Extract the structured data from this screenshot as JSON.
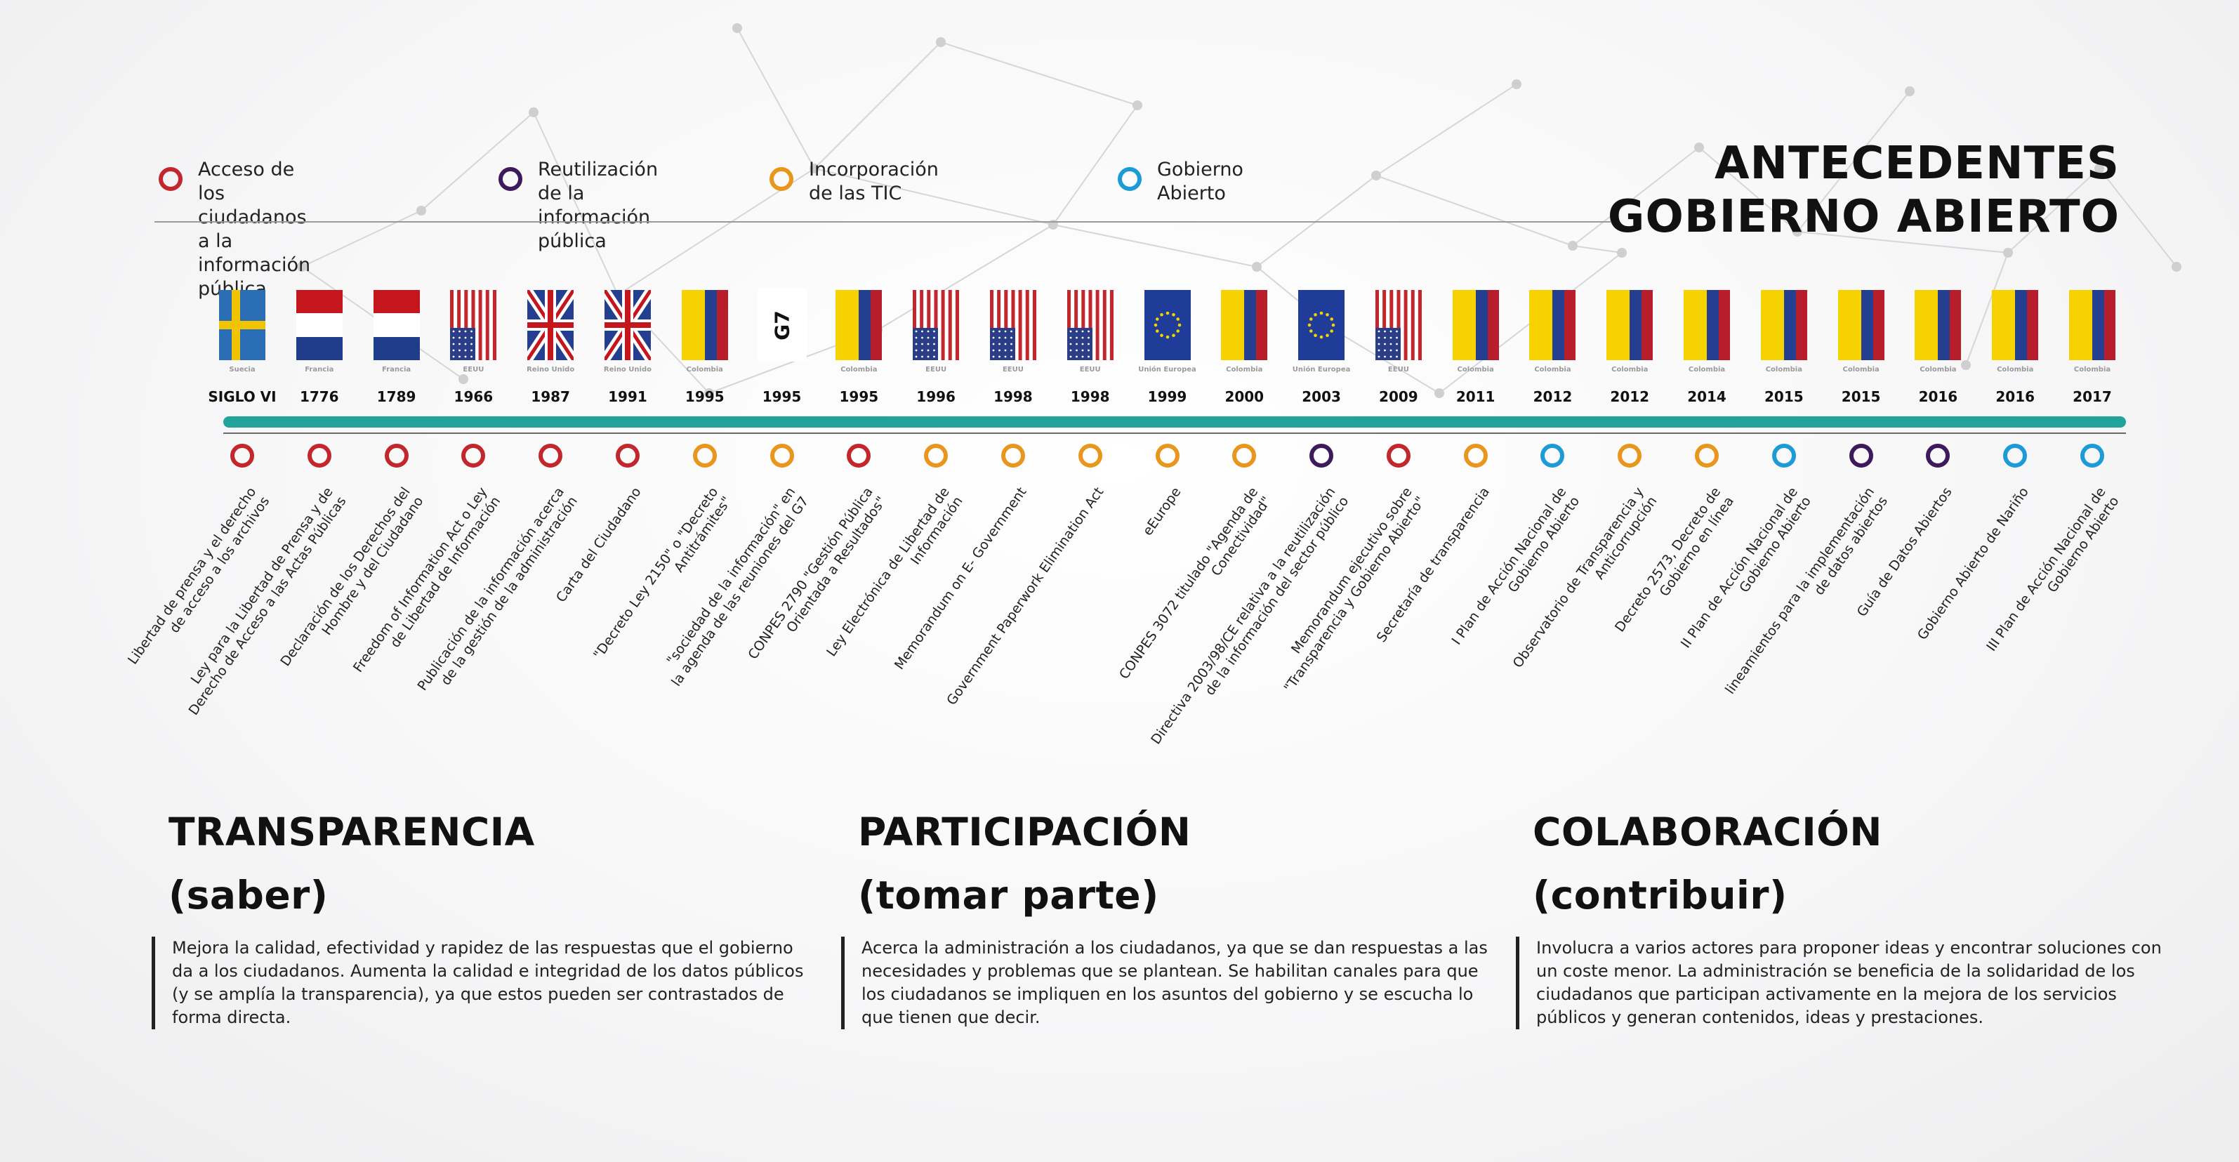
{
  "title_lines": [
    "ANTECEDENTES",
    "GOBIERNO ABIERTO"
  ],
  "colors": {
    "acceso": "#c1272d",
    "reutilizacion": "#3d1a5b",
    "tic": "#e8961e",
    "abierto": "#1c9bd7",
    "bar": "#21a39a"
  },
  "legend": [
    {
      "key": "acceso",
      "label": "Acceso de los ciudadanos\na la información pública"
    },
    {
      "key": "reutilizacion",
      "label": "Reutilización de la\ninformación pública"
    },
    {
      "key": "tic",
      "label": "Incorporación de las TIC"
    },
    {
      "key": "abierto",
      "label": "Gobierno Abierto"
    }
  ],
  "timeline": [
    {
      "flag": "sweden",
      "country": "Suecia",
      "year": "SIGLO VI",
      "category": "acceso",
      "text": "Libertad de prensa y el derecho\nde acceso a los archivos"
    },
    {
      "flag": "france",
      "country": "Francia",
      "year": "1776",
      "category": "acceso",
      "text": "Ley para la Libertad de Prensa y de\nDerecho de Acceso a las Actas Públicas"
    },
    {
      "flag": "france",
      "country": "Francia",
      "year": "1789",
      "category": "acceso",
      "text": "Declaración de los Derechos del\nHombre y del Ciudadano"
    },
    {
      "flag": "usa",
      "country": "EEUU",
      "year": "1966",
      "category": "acceso",
      "text": "Freedom of Information Act o Ley\nde Libertad de Información"
    },
    {
      "flag": "uk",
      "country": "Reino Unido",
      "year": "1987",
      "category": "acceso",
      "text": "Publicación de la información acerca\nde la gestión de la administración"
    },
    {
      "flag": "uk",
      "country": "Reino Unido",
      "year": "1991",
      "category": "acceso",
      "text": "Carta del Ciudadano"
    },
    {
      "flag": "colombia",
      "country": "Colombia",
      "year": "1995",
      "category": "tic",
      "text": "\"Decreto Ley 2150\" o \"Decreto\nAntitrámites\""
    },
    {
      "flag": "g7",
      "country": "",
      "year": "1995",
      "category": "tic",
      "text": "\"sociedad de la información\" en\nla agenda de las reuniones del G7"
    },
    {
      "flag": "colombia",
      "country": "Colombia",
      "year": "1995",
      "category": "acceso",
      "text": "CONPES 2790 \"Gestión Pública\nOrientada a Resultados\""
    },
    {
      "flag": "usa",
      "country": "EEUU",
      "year": "1996",
      "category": "tic",
      "text": "Ley Electrónica de Libertad de\nInformación"
    },
    {
      "flag": "usa",
      "country": "EEUU",
      "year": "1998",
      "category": "tic",
      "text": "Memorandum on E- Government"
    },
    {
      "flag": "usa",
      "country": "EEUU",
      "year": "1998",
      "category": "tic",
      "text": "Government Paperwork Elimination Act"
    },
    {
      "flag": "eu",
      "country": "Unión Europea",
      "year": "1999",
      "category": "tic",
      "text": "eEurope"
    },
    {
      "flag": "colombia",
      "country": "Colombia",
      "year": "2000",
      "category": "tic",
      "text": "CONPES 3072 titulado \"Agenda de\nConectividad\""
    },
    {
      "flag": "eu",
      "country": "Unión Europea",
      "year": "2003",
      "category": "reutilizacion",
      "text": "Directiva 2003/98/CE relativa a la reutilización\nde la información del sector público"
    },
    {
      "flag": "usa",
      "country": "EEUU",
      "year": "2009",
      "category": "acceso",
      "text": "Memorandum ejecutivo sobre\n\"Transparencia y Gobierno Abierto\""
    },
    {
      "flag": "colombia",
      "country": "Colombia",
      "year": "2011",
      "category": "tic",
      "text": "Secretaría de transparencia"
    },
    {
      "flag": "colombia",
      "country": "Colombia",
      "year": "2012",
      "category": "abierto",
      "text": "I Plan de Acción Nacional de\nGobierno Abierto"
    },
    {
      "flag": "colombia",
      "country": "Colombia",
      "year": "2012",
      "category": "tic",
      "text": "Observatorio de Transparencia y\nAnticorrupción"
    },
    {
      "flag": "colombia",
      "country": "Colombia",
      "year": "2014",
      "category": "tic",
      "text": "Decreto 2573, Decreto de\nGobierno en línea"
    },
    {
      "flag": "colombia",
      "country": "Colombia",
      "year": "2015",
      "category": "abierto",
      "text": "II Plan de Acción Nacional de\nGobierno Abierto"
    },
    {
      "flag": "colombia",
      "country": "Colombia",
      "year": "2015",
      "category": "reutilizacion",
      "text": "lineamientos para la implementación\nde datos abiertos"
    },
    {
      "flag": "colombia",
      "country": "Colombia",
      "year": "2016",
      "category": "reutilizacion",
      "text": "Guía de Datos Abiertos"
    },
    {
      "flag": "colombia",
      "country": "Colombia",
      "year": "2016",
      "category": "abierto",
      "text": "Gobierno Abierto de Nariño"
    },
    {
      "flag": "colombia",
      "country": "Colombia",
      "year": "2017",
      "category": "abierto",
      "text": "III Plan de Acción Nacional de\nGobierno Abierto"
    }
  ],
  "g7_label": "G7",
  "pillars": [
    {
      "title": "TRANSPARENCIA",
      "subtitle": "(saber)",
      "text": "Mejora la calidad, efectividad y rapidez de las respuestas que el gobierno da a los ciudadanos. Aumenta la calidad e integridad de los datos públicos (y se amplía la transparencia), ya que estos pueden ser contrastados de forma directa."
    },
    {
      "title": "PARTICIPACIÓN",
      "subtitle": "(tomar parte)",
      "text": "Acerca la administración a los ciudadanos, ya que se dan respuestas a las necesidades y problemas que se plantean. Se habilitan canales para que los ciudadanos se impliquen en los asuntos del gobierno y se escucha lo que tienen que decir."
    },
    {
      "title": "COLABORACIÓN",
      "subtitle": "(contribuir)",
      "text": "Involucra a varios actores para proponer ideas y encontrar soluciones con un coste menor. La administración se beneficia de la solidaridad de los ciudadanos que participan activamente en la mejora de los servicios públicos y generan contenidos, ideas y prestaciones."
    }
  ]
}
